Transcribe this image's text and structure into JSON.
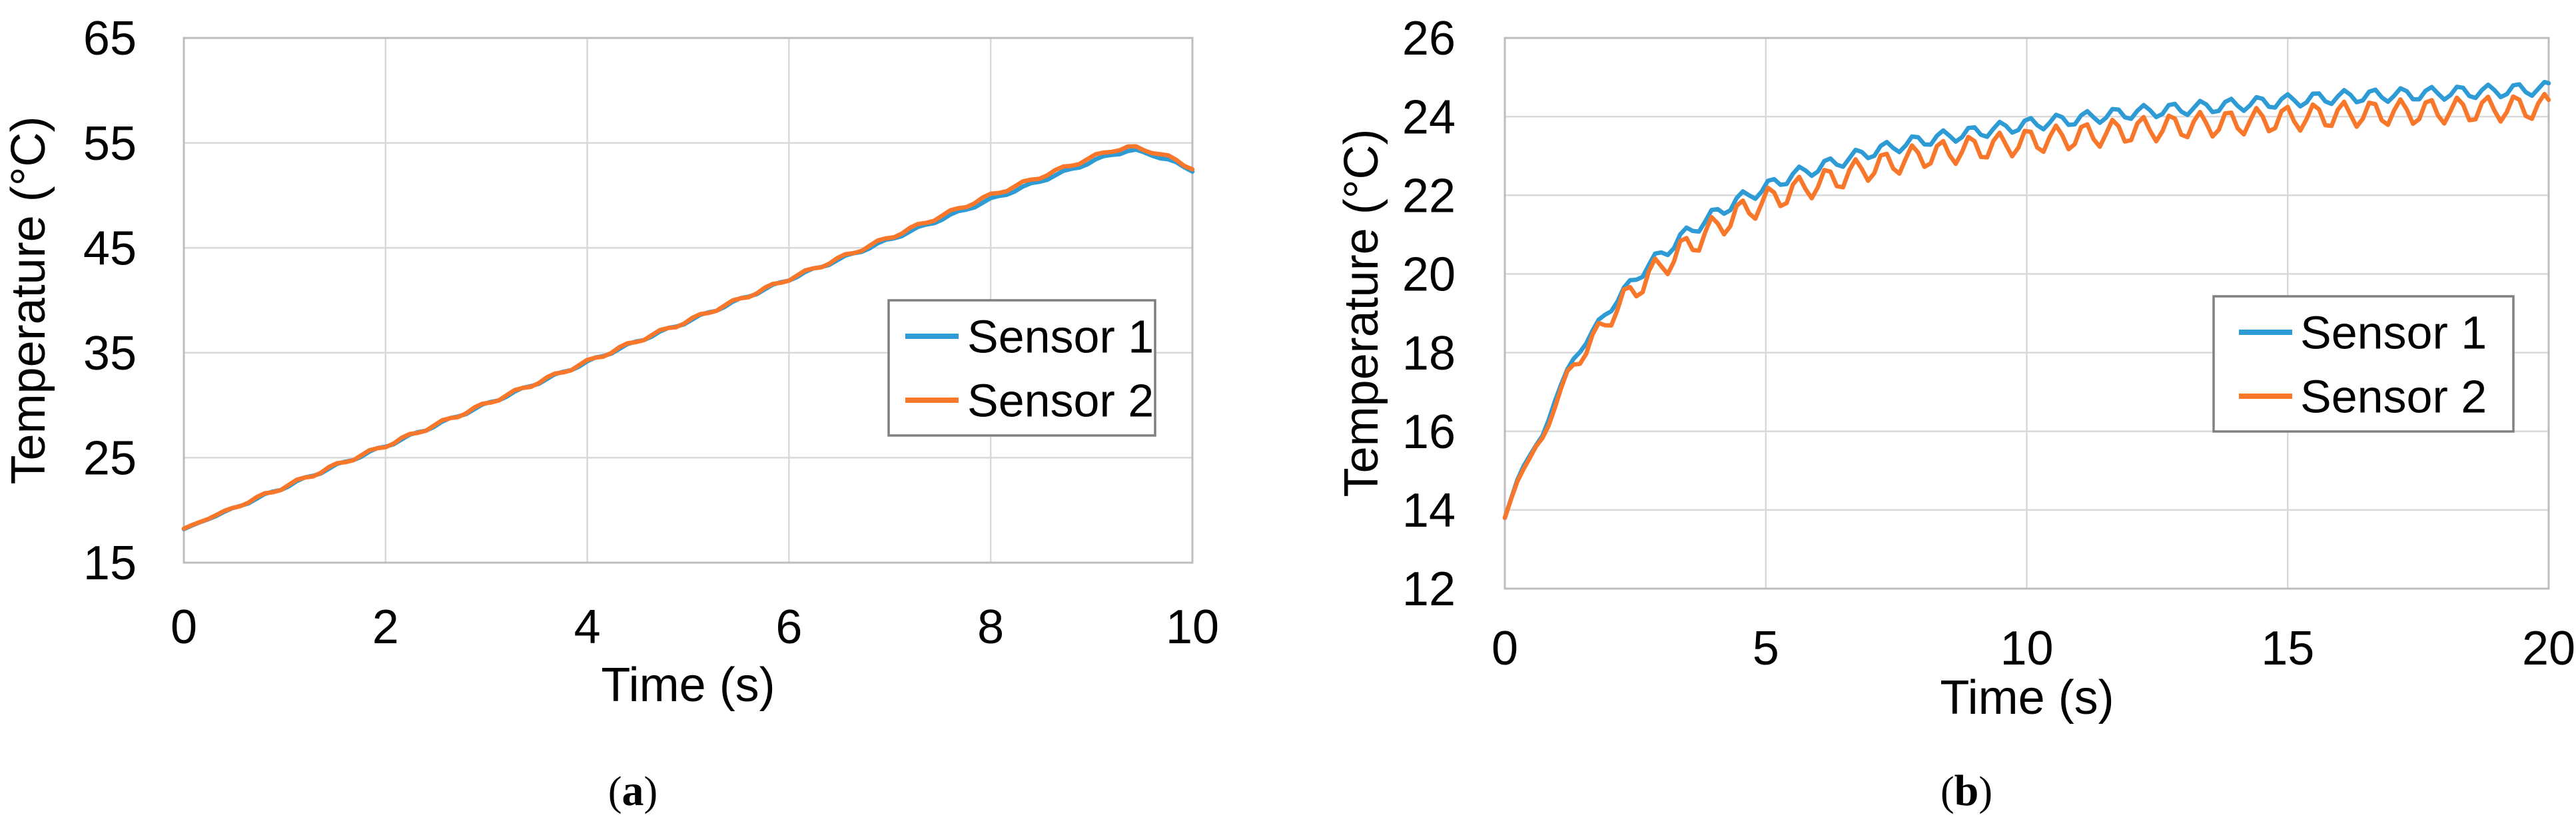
{
  "figure": {
    "background": "#ffffff",
    "text_color": "#000000",
    "grid_color": "#D9D9D9",
    "plot_border_color": "#BDBDBD",
    "legend_border_color": "#808080",
    "captions": {
      "a": {
        "open": "(",
        "letter": "a",
        "close": ")"
      },
      "b": {
        "open": "(",
        "letter": "b",
        "close": ")"
      }
    }
  },
  "chart_data": [
    {
      "id": "a",
      "type": "line",
      "title": "",
      "xlabel": "Time (s)",
      "ylabel": "Temperature (°C)",
      "xlim": [
        0,
        10
      ],
      "ylim": [
        15,
        65
      ],
      "xticks": [
        0,
        2,
        4,
        6,
        8,
        10
      ],
      "yticks": [
        15,
        25,
        35,
        45,
        55,
        65
      ],
      "grid": true,
      "legend_position": "inside-right-middle",
      "sample_step_s": 0.08,
      "series": [
        {
          "name": "Sensor 1",
          "color": "#2E9BD5",
          "ripple": {
            "amplitude": 0.14,
            "period_s": 0.36,
            "phase_rad": 0.0,
            "ramp_s": 0.8
          },
          "backbone": [
            [
              0,
              18.2
            ],
            [
              0.5,
              20.2
            ],
            [
              1,
              22.2
            ],
            [
              1.5,
              24.2
            ],
            [
              2,
              26.1
            ],
            [
              2.5,
              28.1
            ],
            [
              3,
              30.1
            ],
            [
              3.5,
              32.1
            ],
            [
              4,
              34.1
            ],
            [
              4.5,
              36.1
            ],
            [
              5,
              38.0
            ],
            [
              5.5,
              40.0
            ],
            [
              6,
              42.0
            ],
            [
              6.5,
              43.9
            ],
            [
              7,
              45.8
            ],
            [
              7.5,
              47.7
            ],
            [
              8,
              49.6
            ],
            [
              8.5,
              51.4
            ],
            [
              9,
              53.2
            ],
            [
              9.2,
              53.9
            ],
            [
              9.4,
              54.3
            ],
            [
              9.6,
              53.9
            ],
            [
              9.8,
              53.2
            ],
            [
              10,
              52.4
            ]
          ]
        },
        {
          "name": "Sensor 2",
          "color": "#F8772B",
          "ripple": {
            "amplitude": 0.18,
            "period_s": 0.36,
            "phase_rad": 0.7,
            "ramp_s": 0.8
          },
          "backbone": [
            [
              0,
              18.25
            ],
            [
              0.5,
              20.25
            ],
            [
              1,
              22.25
            ],
            [
              1.5,
              24.25
            ],
            [
              2,
              26.15
            ],
            [
              2.5,
              28.15
            ],
            [
              3,
              30.15
            ],
            [
              3.5,
              32.15
            ],
            [
              4,
              34.15
            ],
            [
              4.5,
              36.15
            ],
            [
              5,
              38.05
            ],
            [
              5.5,
              40.05
            ],
            [
              6,
              42.05
            ],
            [
              6.5,
              44.0
            ],
            [
              7,
              46.0
            ],
            [
              7.5,
              48.0
            ],
            [
              8,
              50.0
            ],
            [
              8.5,
              51.8
            ],
            [
              9,
              53.6
            ],
            [
              9.2,
              54.3
            ],
            [
              9.4,
              54.6
            ],
            [
              9.6,
              54.2
            ],
            [
              9.8,
              53.5
            ],
            [
              10,
              52.6
            ]
          ]
        }
      ]
    },
    {
      "id": "b",
      "type": "line",
      "title": "",
      "xlabel": "Time (s)",
      "ylabel": "Temperature (°C)",
      "xlim": [
        0,
        20
      ],
      "ylim": [
        12,
        26
      ],
      "xticks": [
        0,
        5,
        10,
        15,
        20
      ],
      "yticks": [
        12,
        14,
        16,
        18,
        20,
        22,
        24,
        26
      ],
      "grid": true,
      "legend_position": "inside-right-lower",
      "sample_step_s": 0.12,
      "series": [
        {
          "name": "Sensor 1",
          "color": "#2E9BD5",
          "ripple": {
            "amplitude": 0.17,
            "period_s": 0.55,
            "phase_rad": 0.0,
            "ramp_s": 3.0
          },
          "backbone": [
            [
              0,
              13.8
            ],
            [
              0.3,
              15.0
            ],
            [
              0.5,
              15.45
            ],
            [
              0.75,
              15.9
            ],
            [
              1,
              17.0
            ],
            [
              1.25,
              17.65
            ],
            [
              1.5,
              18.2
            ],
            [
              2,
              19.1
            ],
            [
              2.5,
              19.9
            ],
            [
              3,
              20.5
            ],
            [
              3.5,
              21.05
            ],
            [
              4,
              21.5
            ],
            [
              4.5,
              21.9
            ],
            [
              5,
              22.2
            ],
            [
              5.5,
              22.5
            ],
            [
              6,
              22.7
            ],
            [
              6.5,
              22.9
            ],
            [
              7,
              23.1
            ],
            [
              7.5,
              23.25
            ],
            [
              8,
              23.4
            ],
            [
              8.5,
              23.5
            ],
            [
              9,
              23.6
            ],
            [
              9.5,
              23.7
            ],
            [
              10,
              23.8
            ],
            [
              11,
              23.95
            ],
            [
              12,
              24.1
            ],
            [
              13,
              24.2
            ],
            [
              14,
              24.3
            ],
            [
              15,
              24.4
            ],
            [
              16,
              24.5
            ],
            [
              17,
              24.55
            ],
            [
              18,
              24.6
            ],
            [
              19,
              24.65
            ],
            [
              20,
              24.72
            ]
          ]
        },
        {
          "name": "Sensor 2",
          "color": "#F8772B",
          "ripple": {
            "amplitude": 0.33,
            "period_s": 0.55,
            "phase_rad": 0.3,
            "ramp_s": 2.5
          },
          "backbone": [
            [
              0,
              13.8
            ],
            [
              0.3,
              14.95
            ],
            [
              0.5,
              15.4
            ],
            [
              0.75,
              15.8
            ],
            [
              1,
              16.9
            ],
            [
              1.25,
              17.5
            ],
            [
              1.5,
              18.0
            ],
            [
              2,
              18.9
            ],
            [
              2.5,
              19.65
            ],
            [
              3,
              20.2
            ],
            [
              3.5,
              20.7
            ],
            [
              4,
              21.15
            ],
            [
              4.5,
              21.55
            ],
            [
              5,
              21.85
            ],
            [
              5.5,
              22.1
            ],
            [
              6,
              22.3
            ],
            [
              6.5,
              22.5
            ],
            [
              7,
              22.7
            ],
            [
              7.5,
              22.85
            ],
            [
              8,
              23.0
            ],
            [
              8.5,
              23.1
            ],
            [
              9,
              23.2
            ],
            [
              9.5,
              23.27
            ],
            [
              10,
              23.37
            ],
            [
              11,
              23.5
            ],
            [
              12,
              23.65
            ],
            [
              13,
              23.76
            ],
            [
              14,
              23.85
            ],
            [
              15,
              23.95
            ],
            [
              16,
              24.05
            ],
            [
              17,
              24.1
            ],
            [
              18,
              24.15
            ],
            [
              19,
              24.2
            ],
            [
              20,
              24.25
            ]
          ]
        }
      ]
    }
  ]
}
